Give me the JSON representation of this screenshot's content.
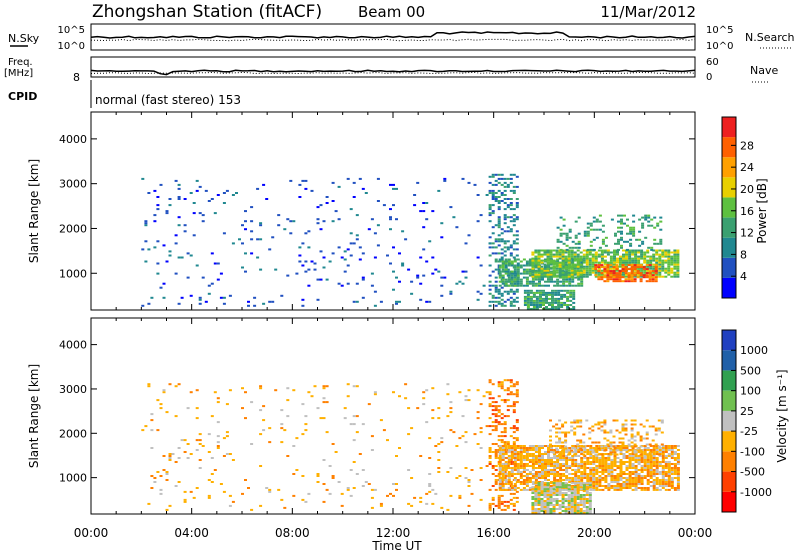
{
  "header": {
    "station": "Zhongshan Station (fitACF)",
    "beam": "Beam 00",
    "date": "11/Mar/2012"
  },
  "params": {
    "nsky_label": "N.Sky",
    "nsky_ticks": [
      "10^5",
      "10^0"
    ],
    "nsearch_label": "N.Search",
    "nsearch_ticks": [
      "10^5",
      "10^0"
    ],
    "freq_label": "Freq.",
    "freq_unit": "[MHz]",
    "freq_tick": "8",
    "nave_label": "Nave",
    "nave_ticks": [
      "60",
      "0"
    ],
    "cpid_label": "CPID",
    "cpid_text": "normal (fast stereo) 153"
  },
  "chart_data": [
    {
      "type": "heatmap",
      "quantity": "Power",
      "ylabel": "Slant Range [km]",
      "xlabel": "Time UT",
      "x_ticks": [
        "00:00",
        "04:00",
        "08:00",
        "12:00",
        "16:00",
        "20:00",
        "00:00"
      ],
      "x_range_hours": [
        0,
        24
      ],
      "y_ticks": [
        1000,
        2000,
        3000,
        4000
      ],
      "ylim": [
        180,
        4600
      ],
      "colorbar": {
        "label": "Power [dB]",
        "ticks": [
          "4",
          "8",
          "12",
          "16",
          "20",
          "24",
          "28"
        ],
        "range": [
          0,
          30
        ],
        "colors": [
          "#0000ff",
          "#2050c0",
          "#208890",
          "#3aa070",
          "#5ec040",
          "#e8d000",
          "#ffa000",
          "#ff6000",
          "#ee2020"
        ]
      },
      "regions": [
        {
          "t": [
            2.0,
            15.8
          ],
          "range": [
            250,
            3100
          ],
          "value": 5,
          "density": 0.04,
          "desc": "scattered weak echoes"
        },
        {
          "t": [
            15.8,
            17.0
          ],
          "range": [
            250,
            3200
          ],
          "value": 7,
          "density": 0.35
        },
        {
          "t": [
            16.2,
            19.5
          ],
          "range": [
            700,
            1300
          ],
          "value": 10,
          "density": 0.75
        },
        {
          "t": [
            17.5,
            23.3
          ],
          "range": [
            900,
            1500
          ],
          "value": 16,
          "density": 0.85
        },
        {
          "t": [
            20.0,
            22.5
          ],
          "range": [
            800,
            1200
          ],
          "value": 26,
          "density": 0.7
        },
        {
          "t": [
            17.2,
            19.2
          ],
          "range": [
            180,
            600
          ],
          "value": 12,
          "density": 0.8
        },
        {
          "t": [
            18.5,
            22.7
          ],
          "range": [
            1500,
            2300
          ],
          "value": 12,
          "density": 0.25
        }
      ]
    },
    {
      "type": "heatmap",
      "quantity": "Velocity",
      "ylabel": "Slant Range [km]",
      "xlabel": "Time UT",
      "x_ticks": [
        "00:00",
        "04:00",
        "08:00",
        "12:00",
        "16:00",
        "20:00",
        "00:00"
      ],
      "x_range_hours": [
        0,
        24
      ],
      "y_ticks": [
        1000,
        2000,
        3000,
        4000
      ],
      "ylim": [
        180,
        4600
      ],
      "colorbar": {
        "label": "Velocity [m s⁻¹]",
        "ticks": [
          "1000",
          "500",
          "100",
          "25",
          "-25",
          "-100",
          "-500",
          "-1000"
        ],
        "range": [
          -1000,
          1000
        ],
        "colors": [
          "#2040c0",
          "#2060a8",
          "#30a050",
          "#70c050",
          "#c0c0c0",
          "#ffb000",
          "#ff8000",
          "#ff4000",
          "#ff0000"
        ]
      },
      "regions": [
        {
          "t": [
            2.0,
            15.8
          ],
          "range": [
            250,
            3100
          ],
          "value": -300,
          "density": 0.04,
          "desc": "scattered echoes, mostly orange"
        },
        {
          "t": [
            15.8,
            17.0
          ],
          "range": [
            250,
            3200
          ],
          "value": -400,
          "density": 0.35
        },
        {
          "t": [
            16.2,
            23.3
          ],
          "range": [
            700,
            1700
          ],
          "value": -300,
          "density": 0.8
        },
        {
          "t": [
            17.5,
            19.8
          ],
          "range": [
            180,
            900
          ],
          "value": 0,
          "density": 0.85,
          "desc": "ground scatter"
        },
        {
          "t": [
            18.2,
            22.7
          ],
          "range": [
            1500,
            2300
          ],
          "value": -200,
          "density": 0.25
        }
      ]
    }
  ],
  "colors": {
    "axis": "#000000",
    "nsky_line": "#000000"
  }
}
